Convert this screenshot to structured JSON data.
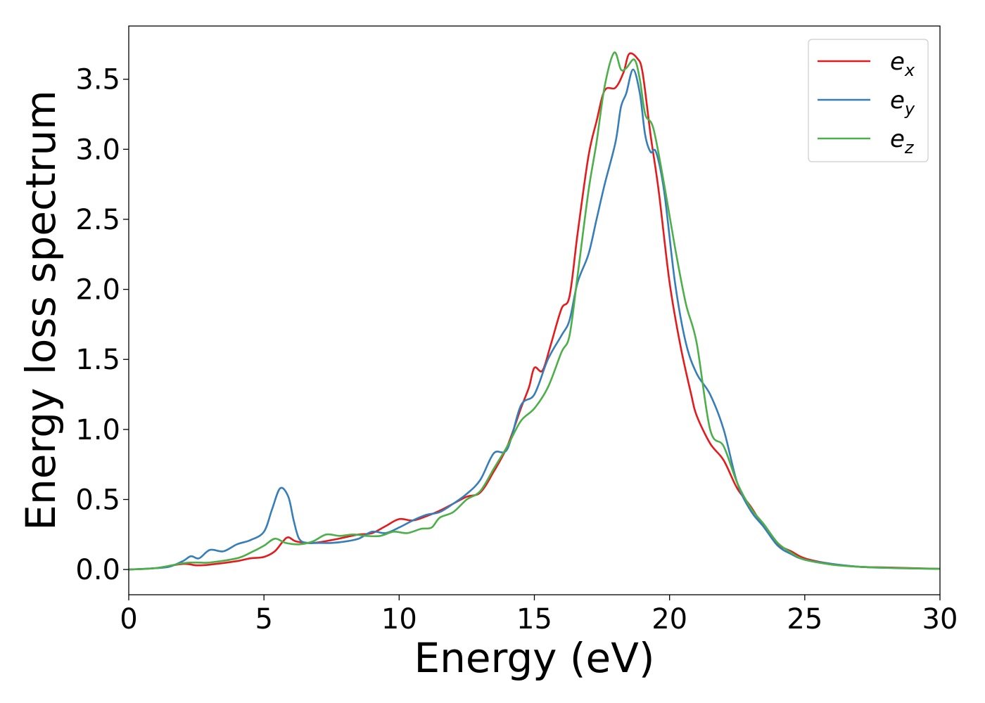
{
  "chart_data": {
    "type": "line",
    "title": "",
    "xlabel": "Energy (eV)",
    "ylabel": "Energy loss spectrum",
    "xlim": [
      0,
      30
    ],
    "ylim": [
      -0.18,
      3.88
    ],
    "xticks": [
      0,
      5,
      10,
      15,
      20,
      25,
      30
    ],
    "xtick_labels": [
      "0",
      "5",
      "10",
      "15",
      "20",
      "25",
      "30"
    ],
    "yticks": [
      0.0,
      0.5,
      1.0,
      1.5,
      2.0,
      2.5,
      3.0,
      3.5
    ],
    "ytick_labels": [
      "0.0",
      "0.5",
      "1.0",
      "1.5",
      "2.0",
      "2.5",
      "3.0",
      "3.5"
    ],
    "grid": false,
    "legend_position": "top-right",
    "series": [
      {
        "name": "e_x",
        "legend_base": "e",
        "legend_sub": "x",
        "color": "#e41a1c",
        "points": [
          [
            0,
            0
          ],
          [
            1,
            0.01
          ],
          [
            2,
            0.04
          ],
          [
            2.5,
            0.03
          ],
          [
            3,
            0.035
          ],
          [
            4,
            0.06
          ],
          [
            4.5,
            0.08
          ],
          [
            5,
            0.09
          ],
          [
            5.4,
            0.13
          ],
          [
            5.7,
            0.2
          ],
          [
            5.9,
            0.23
          ],
          [
            6.2,
            0.2
          ],
          [
            6.8,
            0.19
          ],
          [
            7.5,
            0.21
          ],
          [
            8,
            0.23
          ],
          [
            8.5,
            0.25
          ],
          [
            9,
            0.26
          ],
          [
            9.5,
            0.31
          ],
          [
            10,
            0.36
          ],
          [
            10.5,
            0.35
          ],
          [
            11,
            0.38
          ],
          [
            11.5,
            0.42
          ],
          [
            12,
            0.47
          ],
          [
            12.5,
            0.52
          ],
          [
            13,
            0.55
          ],
          [
            13.5,
            0.7
          ],
          [
            14,
            0.88
          ],
          [
            14.5,
            1.15
          ],
          [
            14.8,
            1.3
          ],
          [
            15,
            1.44
          ],
          [
            15.3,
            1.42
          ],
          [
            15.6,
            1.6
          ],
          [
            16,
            1.86
          ],
          [
            16.3,
            1.95
          ],
          [
            16.6,
            2.4
          ],
          [
            17,
            2.95
          ],
          [
            17.3,
            3.2
          ],
          [
            17.6,
            3.42
          ],
          [
            18,
            3.44
          ],
          [
            18.3,
            3.55
          ],
          [
            18.5,
            3.68
          ],
          [
            18.8,
            3.65
          ],
          [
            19,
            3.55
          ],
          [
            19.3,
            3.1
          ],
          [
            19.6,
            2.7
          ],
          [
            20,
            2.05
          ],
          [
            20.4,
            1.6
          ],
          [
            20.8,
            1.25
          ],
          [
            21,
            1.1
          ],
          [
            21.5,
            0.9
          ],
          [
            22,
            0.78
          ],
          [
            22.5,
            0.58
          ],
          [
            23,
            0.45
          ],
          [
            23.5,
            0.3
          ],
          [
            24,
            0.18
          ],
          [
            24.5,
            0.13
          ],
          [
            25,
            0.08
          ],
          [
            26,
            0.04
          ],
          [
            27,
            0.02
          ],
          [
            28,
            0.015
          ],
          [
            29,
            0.01
          ],
          [
            30,
            0.005
          ]
        ]
      },
      {
        "name": "e_y",
        "legend_base": "e",
        "legend_sub": "y",
        "color": "#377eb8",
        "points": [
          [
            0,
            0
          ],
          [
            1,
            0.01
          ],
          [
            1.5,
            0.02
          ],
          [
            2,
            0.06
          ],
          [
            2.3,
            0.095
          ],
          [
            2.6,
            0.08
          ],
          [
            3,
            0.14
          ],
          [
            3.5,
            0.13
          ],
          [
            4,
            0.18
          ],
          [
            4.5,
            0.21
          ],
          [
            5,
            0.27
          ],
          [
            5.3,
            0.43
          ],
          [
            5.6,
            0.58
          ],
          [
            5.9,
            0.52
          ],
          [
            6.1,
            0.35
          ],
          [
            6.3,
            0.22
          ],
          [
            6.6,
            0.19
          ],
          [
            7,
            0.19
          ],
          [
            7.5,
            0.19
          ],
          [
            8,
            0.2
          ],
          [
            8.5,
            0.22
          ],
          [
            9,
            0.27
          ],
          [
            9.5,
            0.26
          ],
          [
            10,
            0.3
          ],
          [
            10.5,
            0.35
          ],
          [
            11,
            0.39
          ],
          [
            11.5,
            0.41
          ],
          [
            12,
            0.47
          ],
          [
            12.5,
            0.54
          ],
          [
            13,
            0.64
          ],
          [
            13.5,
            0.83
          ],
          [
            14,
            0.86
          ],
          [
            14.5,
            1.17
          ],
          [
            15,
            1.25
          ],
          [
            15.5,
            1.5
          ],
          [
            16,
            1.67
          ],
          [
            16.3,
            1.78
          ],
          [
            16.6,
            2.05
          ],
          [
            17,
            2.25
          ],
          [
            17.3,
            2.5
          ],
          [
            17.6,
            2.75
          ],
          [
            18,
            3.05
          ],
          [
            18.2,
            3.3
          ],
          [
            18.4,
            3.4
          ],
          [
            18.65,
            3.57
          ],
          [
            18.9,
            3.4
          ],
          [
            19.1,
            3.1
          ],
          [
            19.3,
            2.98
          ],
          [
            19.5,
            2.98
          ],
          [
            19.8,
            2.7
          ],
          [
            20.2,
            2.05
          ],
          [
            20.6,
            1.62
          ],
          [
            21,
            1.4
          ],
          [
            21.5,
            1.25
          ],
          [
            22,
            1.0
          ],
          [
            22.5,
            0.62
          ],
          [
            23,
            0.42
          ],
          [
            23.5,
            0.3
          ],
          [
            24,
            0.17
          ],
          [
            24.5,
            0.11
          ],
          [
            25,
            0.07
          ],
          [
            26,
            0.04
          ],
          [
            27,
            0.02
          ],
          [
            28,
            0.012
          ],
          [
            29,
            0.008
          ],
          [
            30,
            0.005
          ]
        ]
      },
      {
        "name": "e_z",
        "legend_base": "e",
        "legend_sub": "z",
        "color": "#4daf4a",
        "points": [
          [
            0,
            0
          ],
          [
            1,
            0.01
          ],
          [
            2,
            0.045
          ],
          [
            2.5,
            0.05
          ],
          [
            3,
            0.05
          ],
          [
            4,
            0.08
          ],
          [
            4.5,
            0.12
          ],
          [
            5,
            0.17
          ],
          [
            5.4,
            0.22
          ],
          [
            5.8,
            0.19
          ],
          [
            6.3,
            0.18
          ],
          [
            6.8,
            0.2
          ],
          [
            7.3,
            0.25
          ],
          [
            7.8,
            0.24
          ],
          [
            8.3,
            0.25
          ],
          [
            8.8,
            0.24
          ],
          [
            9.3,
            0.24
          ],
          [
            9.8,
            0.27
          ],
          [
            10.3,
            0.26
          ],
          [
            10.8,
            0.29
          ],
          [
            11.2,
            0.3
          ],
          [
            11.5,
            0.37
          ],
          [
            12,
            0.41
          ],
          [
            12.5,
            0.5
          ],
          [
            13,
            0.56
          ],
          [
            13.5,
            0.72
          ],
          [
            14,
            0.88
          ],
          [
            14.5,
            1.06
          ],
          [
            15,
            1.15
          ],
          [
            15.5,
            1.3
          ],
          [
            16,
            1.55
          ],
          [
            16.3,
            1.67
          ],
          [
            16.6,
            2.1
          ],
          [
            17,
            2.7
          ],
          [
            17.3,
            3.05
          ],
          [
            17.6,
            3.45
          ],
          [
            17.95,
            3.69
          ],
          [
            18.2,
            3.57
          ],
          [
            18.4,
            3.58
          ],
          [
            18.7,
            3.64
          ],
          [
            18.9,
            3.5
          ],
          [
            19.1,
            3.25
          ],
          [
            19.4,
            3.15
          ],
          [
            19.8,
            2.75
          ],
          [
            20.2,
            2.3
          ],
          [
            20.6,
            1.9
          ],
          [
            21,
            1.62
          ],
          [
            21.5,
            1.0
          ],
          [
            22,
            0.88
          ],
          [
            22.5,
            0.62
          ],
          [
            23,
            0.44
          ],
          [
            23.5,
            0.32
          ],
          [
            24,
            0.19
          ],
          [
            24.5,
            0.12
          ],
          [
            25,
            0.07
          ],
          [
            26,
            0.035
          ],
          [
            27,
            0.02
          ],
          [
            28,
            0.013
          ],
          [
            29,
            0.008
          ],
          [
            30,
            0.005
          ]
        ]
      }
    ]
  }
}
